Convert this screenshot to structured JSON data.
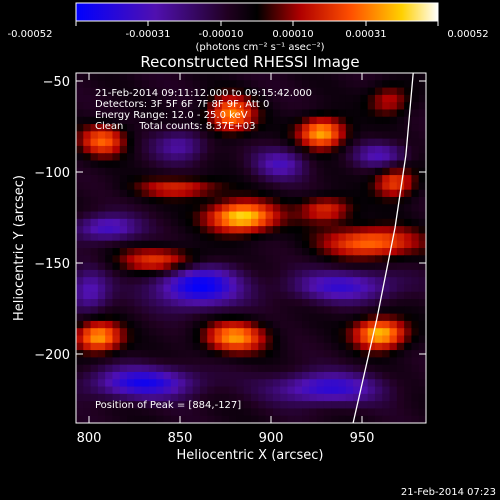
{
  "colorbar": {
    "tick_labels": [
      "-0.00052",
      "-0.00031",
      "-0.00010",
      "0.00010",
      "0.00031",
      "0.00052"
    ],
    "unit_label": "(photons cm⁻² s⁻¹ asec⁻²)"
  },
  "plot": {
    "title": "Reconstructed RHESSI Image",
    "xlabel": "Heliocentric X (arcsec)",
    "ylabel": "Heliocentric Y (arcsec)",
    "x_tick_labels": [
      "800",
      "850",
      "900",
      "950"
    ],
    "y_tick_labels": [
      "−50",
      "−100",
      "−150",
      "−200"
    ]
  },
  "annotations": {
    "line1": "21-Feb-2014 09:11:12.000 to 09:15:42.000",
    "line2": "Detectors: 3F 5F 6F 7F 8F 9F, Att 0",
    "line3": "Energy Range: 12.0 - 25.0 keV",
    "line4": "Clean     Total counts: 8.37E+03",
    "peak": "Position of Peak = [884,-127]"
  },
  "footer": {
    "timestamp": "21-Feb-2014 07:23"
  },
  "chart_data": {
    "type": "heatmap",
    "title": "Reconstructed RHESSI Image",
    "xlabel": "Heliocentric X (arcsec)",
    "ylabel": "Heliocentric Y (arcsec)",
    "xlim": [
      793,
      985
    ],
    "ylim": [
      -237,
      -45
    ],
    "value_range": [
      -0.00052,
      0.00052
    ],
    "colormap": "blue-purple-black-red-yellow-white",
    "peak": [
      884,
      -127
    ],
    "blobs": [
      {
        "x": 884,
        "y": -124,
        "sx": 13,
        "sy": 6,
        "value": 0.00052
      },
      {
        "x": 928,
        "y": -78,
        "sx": 9,
        "sy": 6,
        "value": 0.00045
      },
      {
        "x": 878,
        "y": -68,
        "sx": 9,
        "sy": 7,
        "value": 0.0004
      },
      {
        "x": 808,
        "y": -82,
        "sx": 9,
        "sy": 6,
        "value": 0.00034
      },
      {
        "x": 955,
        "y": -138,
        "sx": 18,
        "sy": 6,
        "value": 0.00038
      },
      {
        "x": 840,
        "y": -148,
        "sx": 16,
        "sy": 5,
        "value": 0.0003
      },
      {
        "x": 805,
        "y": -190,
        "sx": 9,
        "sy": 6,
        "value": 0.00044
      },
      {
        "x": 880,
        "y": -190,
        "sx": 12,
        "sy": 6,
        "value": 0.0004
      },
      {
        "x": 960,
        "y": -188,
        "sx": 10,
        "sy": 6,
        "value": 0.00048
      },
      {
        "x": 968,
        "y": -105,
        "sx": 8,
        "sy": 6,
        "value": 0.00032
      },
      {
        "x": 850,
        "y": -108,
        "sx": 16,
        "sy": 4,
        "value": 0.00026
      },
      {
        "x": 930,
        "y": -120,
        "sx": 10,
        "sy": 5,
        "value": 0.00028
      },
      {
        "x": 965,
        "y": -60,
        "sx": 8,
        "sy": 6,
        "value": 0.00022
      },
      {
        "x": 810,
        "y": -130,
        "sx": 12,
        "sy": 5,
        "value": -0.0003
      },
      {
        "x": 860,
        "y": -162,
        "sx": 16,
        "sy": 8,
        "value": -0.00045
      },
      {
        "x": 940,
        "y": -162,
        "sx": 20,
        "sy": 6,
        "value": -0.0003
      },
      {
        "x": 830,
        "y": -215,
        "sx": 20,
        "sy": 6,
        "value": -0.00038
      },
      {
        "x": 930,
        "y": -218,
        "sx": 20,
        "sy": 6,
        "value": -0.00034
      },
      {
        "x": 800,
        "y": -165,
        "sx": 8,
        "sy": 8,
        "value": -0.00026
      },
      {
        "x": 905,
        "y": -95,
        "sx": 10,
        "sy": 6,
        "value": -0.00024
      },
      {
        "x": 850,
        "y": -85,
        "sx": 10,
        "sy": 6,
        "value": -0.00022
      },
      {
        "x": 960,
        "y": -90,
        "sx": 10,
        "sy": 5,
        "value": -0.00024
      }
    ],
    "limb_curve": [
      [
        945,
        -237
      ],
      [
        958,
        -180
      ],
      [
        968,
        -130
      ],
      [
        974,
        -90
      ],
      [
        978,
        -45
      ]
    ]
  }
}
